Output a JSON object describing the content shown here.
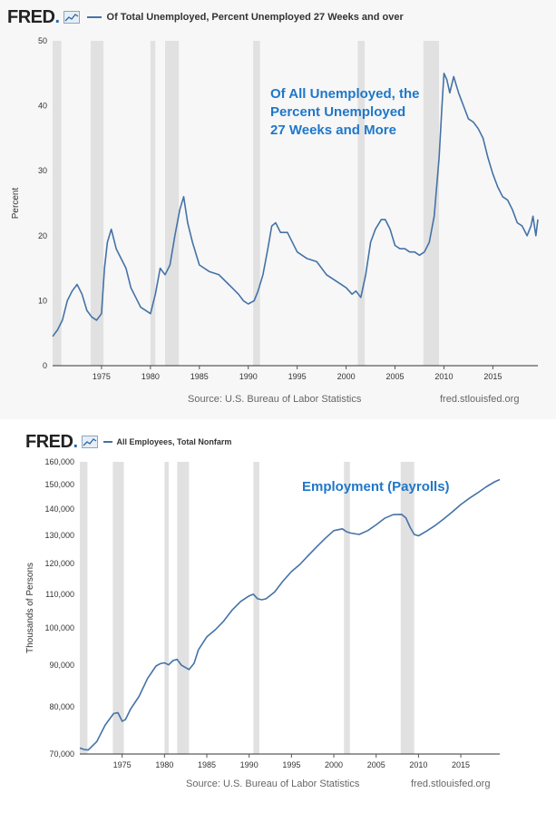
{
  "panels": [
    {
      "logo": "FRED",
      "legend": "Of Total Unemployed, Percent Unemployed 27 Weeks and over",
      "source": "Source: U.S. Bureau of Labor Statistics",
      "site": "fred.stlouisfed.org"
    },
    {
      "logo": "FRED",
      "legend": "All Employees, Total Nonfarm",
      "source": "Source: U.S. Bureau of Labor Statistics",
      "site": "fred.stlouisfed.org"
    }
  ],
  "colors": {
    "series": "#4572a7",
    "recession": "#e1e1e1",
    "annotation": "#1f77c8"
  },
  "chart_data": [
    {
      "type": "line",
      "title": "Of Total Unemployed, Percent Unemployed 27 Weeks and over",
      "ylabel": "Percent",
      "xlabel": "",
      "xlim": [
        1970.0,
        2019.6
      ],
      "ylim": [
        0,
        50
      ],
      "xticks": [
        1975,
        1980,
        1985,
        1990,
        1995,
        2000,
        2005,
        2010,
        2015
      ],
      "yticks": [
        0,
        10,
        20,
        30,
        40,
        50
      ],
      "ytick_labels": [
        "0",
        "10",
        "20",
        "30",
        "40",
        "50"
      ],
      "annotation": [
        "Of All Unemployed, the",
        "Percent Unemployed",
        "27 Weeks and More"
      ],
      "recessions": [
        [
          1970.0,
          1970.9
        ],
        [
          1973.9,
          1975.2
        ],
        [
          1980.0,
          1980.5
        ],
        [
          1981.5,
          1982.9
        ],
        [
          1990.5,
          1991.2
        ],
        [
          2001.2,
          2001.9
        ],
        [
          2007.9,
          2009.5
        ]
      ],
      "series": [
        {
          "name": "Of Total Unemployed, Percent Unemployed 27 Weeks and over",
          "x": [
            1970.0,
            1970.5,
            1971.0,
            1971.5,
            1972.0,
            1972.5,
            1973.0,
            1973.5,
            1974.0,
            1974.5,
            1975.0,
            1975.3,
            1975.6,
            1976.0,
            1976.5,
            1977.0,
            1977.5,
            1978.0,
            1978.5,
            1979.0,
            1979.5,
            1980.0,
            1980.5,
            1981.0,
            1981.5,
            1982.0,
            1982.5,
            1983.0,
            1983.4,
            1983.8,
            1984.3,
            1985.0,
            1986.0,
            1987.0,
            1988.0,
            1989.0,
            1989.5,
            1990.0,
            1990.6,
            1991.0,
            1991.5,
            1992.0,
            1992.4,
            1992.8,
            1993.3,
            1994.0,
            1995.0,
            1996.0,
            1997.0,
            1998.0,
            1999.0,
            2000.0,
            2000.6,
            2001.0,
            2001.5,
            2002.0,
            2002.5,
            2003.0,
            2003.6,
            2004.0,
            2004.5,
            2005.0,
            2005.5,
            2006.0,
            2006.5,
            2007.0,
            2007.5,
            2008.0,
            2008.5,
            2009.0,
            2009.5,
            2009.8,
            2010.0,
            2010.3,
            2010.6,
            2011.0,
            2011.5,
            2012.0,
            2012.5,
            2013.0,
            2013.5,
            2014.0,
            2014.5,
            2015.0,
            2015.5,
            2016.0,
            2016.5,
            2017.0,
            2017.5,
            2018.0,
            2018.5,
            2018.9,
            2019.1,
            2019.4,
            2019.6
          ],
          "y": [
            4.5,
            5.5,
            7.0,
            10.0,
            11.5,
            12.5,
            11.0,
            8.5,
            7.5,
            7.0,
            8.0,
            15.0,
            19.0,
            21.0,
            18.0,
            16.5,
            15.0,
            12.0,
            10.5,
            9.0,
            8.5,
            8.0,
            11.0,
            15.0,
            14.0,
            15.5,
            20.0,
            24.0,
            26.0,
            22.0,
            19.0,
            15.5,
            14.5,
            14.0,
            12.5,
            11.0,
            10.0,
            9.5,
            10.0,
            11.5,
            14.0,
            18.0,
            21.5,
            22.0,
            20.5,
            20.5,
            17.5,
            16.5,
            16.0,
            14.0,
            13.0,
            12.0,
            11.0,
            11.5,
            10.5,
            14.0,
            19.0,
            21.0,
            22.5,
            22.5,
            21.0,
            18.5,
            18.0,
            18.0,
            17.5,
            17.5,
            17.0,
            17.5,
            19.0,
            23.0,
            32.0,
            40.0,
            45.0,
            44.0,
            42.0,
            44.5,
            42.0,
            40.0,
            38.0,
            37.5,
            36.5,
            35.0,
            32.0,
            29.5,
            27.5,
            26.0,
            25.5,
            24.0,
            22.0,
            21.5,
            20.0,
            21.5,
            23.0,
            20.0,
            22.5
          ]
        }
      ]
    },
    {
      "type": "line",
      "title": "All Employees, Total Nonfarm",
      "ylabel": "Thousands of Persons",
      "xlabel": "",
      "scale": "log",
      "xlim": [
        1970.0,
        2019.6
      ],
      "ylim": [
        70000,
        160000
      ],
      "xticks": [
        1975,
        1980,
        1985,
        1990,
        1995,
        2000,
        2005,
        2010,
        2015
      ],
      "yticks": [
        70000,
        80000,
        90000,
        100000,
        110000,
        120000,
        130000,
        140000,
        150000,
        160000
      ],
      "ytick_labels": [
        "70,000",
        "80,000",
        "90,000",
        "100,000",
        "110,000",
        "120,000",
        "130,000",
        "140,000",
        "150,000",
        "160,000"
      ],
      "annotation": [
        "Employment (Payrolls)"
      ],
      "recessions": [
        [
          1970.0,
          1970.9
        ],
        [
          1973.9,
          1975.2
        ],
        [
          1980.0,
          1980.5
        ],
        [
          1981.5,
          1982.9
        ],
        [
          1990.5,
          1991.2
        ],
        [
          2001.2,
          2001.9
        ],
        [
          2007.9,
          2009.5
        ]
      ],
      "series": [
        {
          "name": "All Employees, Total Nonfarm",
          "x": [
            1970.0,
            1970.5,
            1971.0,
            1972.0,
            1973.0,
            1974.0,
            1974.5,
            1975.0,
            1975.4,
            1976.0,
            1977.0,
            1978.0,
            1979.0,
            1979.5,
            1980.0,
            1980.5,
            1981.0,
            1981.5,
            1982.0,
            1982.9,
            1983.5,
            1984.0,
            1985.0,
            1986.0,
            1987.0,
            1988.0,
            1989.0,
            1990.0,
            1990.5,
            1991.0,
            1991.5,
            1992.0,
            1993.0,
            1994.0,
            1995.0,
            1996.0,
            1997.0,
            1998.0,
            1999.0,
            2000.0,
            2001.0,
            2001.5,
            2002.0,
            2003.0,
            2004.0,
            2005.0,
            2006.0,
            2007.0,
            2008.0,
            2008.5,
            2009.0,
            2009.5,
            2010.0,
            2011.0,
            2012.0,
            2013.0,
            2014.0,
            2015.0,
            2016.0,
            2017.0,
            2018.0,
            2019.0,
            2019.6
          ],
          "y": [
            71200,
            70900,
            70800,
            72500,
            76000,
            78500,
            78700,
            76800,
            77200,
            79500,
            82400,
            86700,
            89800,
            90400,
            90600,
            90100,
            91200,
            91500,
            90000,
            88900,
            90500,
            94000,
            97500,
            99500,
            102000,
            105200,
            107800,
            109500,
            110000,
            108600,
            108300,
            108600,
            110700,
            114200,
            117300,
            119700,
            122800,
            125900,
            128900,
            131700,
            132400,
            131300,
            130800,
            130300,
            131700,
            133900,
            136400,
            137800,
            137900,
            136600,
            133000,
            130300,
            129800,
            131600,
            133700,
            136200,
            138900,
            141800,
            144300,
            146600,
            149100,
            151200,
            152200
          ]
        }
      ]
    }
  ]
}
